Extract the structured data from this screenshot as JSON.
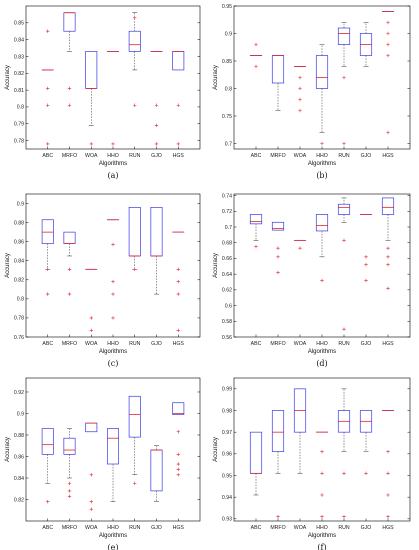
{
  "figure": {
    "xlabel": "Algorithms",
    "ylabel": "Accuracy"
  },
  "colors": {
    "box": "#3a3ae8",
    "median": "#e0262b",
    "outlier": "#e0262b",
    "whisker": "#333333"
  },
  "chart_data": [
    {
      "type": "box",
      "panel_label": "(a)",
      "categories": [
        "ABC",
        "MRFO",
        "WOA",
        "HHO",
        "RUN",
        "GJO",
        "HGS"
      ],
      "ylim": [
        0.775,
        0.86
      ],
      "yticks": [
        0.78,
        0.79,
        0.8,
        0.81,
        0.82,
        0.83,
        0.84,
        0.85
      ],
      "ytick_labels": [
        "0.78",
        "0.79",
        "0.8",
        "0.81",
        "0.82",
        "0.83",
        "0.84",
        "0.85"
      ],
      "boxes": [
        {
          "q1": 0.822,
          "median": 0.822,
          "q3": 0.822,
          "wlo": 0.822,
          "whi": 0.822,
          "outliers": [
            0.845,
            0.811,
            0.801,
            0.778
          ]
        },
        {
          "q1": 0.845,
          "median": 0.856,
          "q3": 0.856,
          "wlo": 0.833,
          "whi": 0.856,
          "outliers": [
            0.811,
            0.801
          ]
        },
        {
          "q1": 0.811,
          "median": 0.811,
          "q3": 0.833,
          "wlo": 0.789,
          "whi": 0.833,
          "outliers": [
            0.778
          ]
        },
        {
          "q1": 0.833,
          "median": 0.833,
          "q3": 0.833,
          "wlo": 0.833,
          "whi": 0.833,
          "outliers": [
            0.778
          ]
        },
        {
          "q1": 0.833,
          "median": 0.837,
          "q3": 0.845,
          "wlo": 0.822,
          "whi": 0.856,
          "outliers": [
            0.853,
            0.801
          ]
        },
        {
          "q1": 0.833,
          "median": 0.833,
          "q3": 0.833,
          "wlo": 0.833,
          "whi": 0.833,
          "outliers": [
            0.801,
            0.789,
            0.778
          ]
        },
        {
          "q1": 0.822,
          "median": 0.833,
          "q3": 0.833,
          "wlo": 0.822,
          "whi": 0.833,
          "outliers": [
            0.801,
            0.778
          ]
        }
      ]
    },
    {
      "type": "box",
      "panel_label": "(b)",
      "categories": [
        "ABC",
        "MRFO",
        "WOA",
        "HHO",
        "RUN",
        "GJO",
        "HGS"
      ],
      "ylim": [
        0.69,
        0.95
      ],
      "yticks": [
        0.7,
        0.75,
        0.8,
        0.85,
        0.9,
        0.95
      ],
      "ytick_labels": [
        "0.7",
        "0.75",
        "0.8",
        "0.85",
        "0.9",
        "0.95"
      ],
      "boxes": [
        {
          "q1": 0.86,
          "median": 0.86,
          "q3": 0.86,
          "wlo": 0.86,
          "whi": 0.86,
          "outliers": [
            0.88,
            0.84
          ]
        },
        {
          "q1": 0.81,
          "median": 0.86,
          "q3": 0.86,
          "wlo": 0.76,
          "whi": 0.86,
          "outliers": []
        },
        {
          "q1": 0.84,
          "median": 0.84,
          "q3": 0.84,
          "wlo": 0.84,
          "whi": 0.84,
          "outliers": [
            0.82,
            0.8,
            0.78,
            0.76
          ]
        },
        {
          "q1": 0.8,
          "median": 0.82,
          "q3": 0.86,
          "wlo": 0.72,
          "whi": 0.88,
          "outliers": [
            0.7
          ]
        },
        {
          "q1": 0.88,
          "median": 0.9,
          "q3": 0.91,
          "wlo": 0.84,
          "whi": 0.92,
          "outliers": [
            0.82,
            0.7
          ]
        },
        {
          "q1": 0.86,
          "median": 0.88,
          "q3": 0.9,
          "wlo": 0.84,
          "whi": 0.92,
          "outliers": []
        },
        {
          "q1": 0.94,
          "median": 0.94,
          "q3": 0.94,
          "wlo": 0.94,
          "whi": 0.94,
          "outliers": [
            0.92,
            0.9,
            0.88,
            0.86,
            0.72
          ]
        }
      ]
    },
    {
      "type": "box",
      "panel_label": "(c)",
      "categories": [
        "ABC",
        "MRFO",
        "WOA",
        "HHO",
        "RUN",
        "GJO",
        "HGS"
      ],
      "ylim": [
        0.76,
        0.91
      ],
      "yticks": [
        0.76,
        0.78,
        0.8,
        0.82,
        0.84,
        0.86,
        0.88,
        0.9
      ],
      "ytick_labels": [
        "0.76",
        "0.78",
        "0.8",
        "0.82",
        "0.84",
        "0.86",
        "0.88",
        "0.9"
      ],
      "boxes": [
        {
          "q1": 0.858,
          "median": 0.87,
          "q3": 0.883,
          "wlo": 0.831,
          "whi": 0.883,
          "outliers": [
            0.831,
            0.805
          ]
        },
        {
          "q1": 0.858,
          "median": 0.858,
          "q3": 0.87,
          "wlo": 0.845,
          "whi": 0.87,
          "outliers": [
            0.831,
            0.805
          ]
        },
        {
          "q1": 0.831,
          "median": 0.831,
          "q3": 0.831,
          "wlo": 0.831,
          "whi": 0.831,
          "outliers": [
            0.78,
            0.767
          ]
        },
        {
          "q1": 0.883,
          "median": 0.883,
          "q3": 0.883,
          "wlo": 0.883,
          "whi": 0.883,
          "outliers": [
            0.857,
            0.818,
            0.805,
            0.78
          ]
        },
        {
          "q1": 0.845,
          "median": 0.845,
          "q3": 0.896,
          "wlo": 0.831,
          "whi": 0.896,
          "outliers": [
            0.831
          ]
        },
        {
          "q1": 0.845,
          "median": 0.845,
          "q3": 0.896,
          "wlo": 0.805,
          "whi": 0.896,
          "outliers": []
        },
        {
          "q1": 0.87,
          "median": 0.87,
          "q3": 0.87,
          "wlo": 0.87,
          "whi": 0.87,
          "outliers": [
            0.831,
            0.818,
            0.805,
            0.767
          ]
        }
      ]
    },
    {
      "type": "box",
      "panel_label": "(d)",
      "categories": [
        "ABC",
        "MRFO",
        "WOA",
        "HHO",
        "RUN",
        "GJO",
        "HGS"
      ],
      "ylim": [
        0.56,
        0.742
      ],
      "yticks": [
        0.56,
        0.58,
        0.6,
        0.62,
        0.64,
        0.66,
        0.68,
        0.7,
        0.72,
        0.74
      ],
      "ytick_labels": [
        "0.56",
        "0.58",
        "0.6",
        "0.62",
        "0.64",
        "0.66",
        "0.68",
        "0.7",
        "0.72",
        "0.74"
      ],
      "boxes": [
        {
          "q1": 0.704,
          "median": 0.707,
          "q3": 0.716,
          "wlo": 0.683,
          "whi": 0.716,
          "outliers": [
            0.675
          ]
        },
        {
          "q1": 0.696,
          "median": 0.698,
          "q3": 0.706,
          "wlo": 0.696,
          "whi": 0.706,
          "outliers": [
            0.673,
            0.662,
            0.642
          ]
        },
        {
          "q1": 0.683,
          "median": 0.683,
          "q3": 0.683,
          "wlo": 0.683,
          "whi": 0.683,
          "outliers": [
            0.673
          ]
        },
        {
          "q1": 0.695,
          "median": 0.702,
          "q3": 0.716,
          "wlo": 0.662,
          "whi": 0.716,
          "outliers": [
            0.632
          ]
        },
        {
          "q1": 0.716,
          "median": 0.725,
          "q3": 0.729,
          "wlo": 0.706,
          "whi": 0.737,
          "outliers": [
            0.683,
            0.57
          ]
        },
        {
          "q1": 0.716,
          "median": 0.716,
          "q3": 0.716,
          "wlo": 0.716,
          "whi": 0.716,
          "outliers": [
            0.662,
            0.652,
            0.632
          ]
        },
        {
          "q1": 0.716,
          "median": 0.725,
          "q3": 0.737,
          "wlo": 0.683,
          "whi": 0.737,
          "outliers": [
            0.673,
            0.662,
            0.652,
            0.622
          ]
        }
      ]
    },
    {
      "type": "box",
      "panel_label": "(e)",
      "categories": [
        "ABC",
        "MRFO",
        "WOA",
        "HHO",
        "RUN",
        "GJO",
        "HGS"
      ],
      "ylim": [
        0.8,
        0.933
      ],
      "yticks": [
        0.82,
        0.84,
        0.86,
        0.88,
        0.9,
        0.92
      ],
      "ytick_labels": [
        "0.82",
        "0.84",
        "0.86",
        "0.88",
        "0.9",
        "0.92"
      ],
      "boxes": [
        {
          "q1": 0.862,
          "median": 0.871,
          "q3": 0.886,
          "wlo": 0.835,
          "whi": 0.886,
          "outliers": [
            0.818
          ]
        },
        {
          "q1": 0.862,
          "median": 0.866,
          "q3": 0.877,
          "wlo": 0.84,
          "whi": 0.886,
          "outliers": [
            0.835,
            0.828,
            0.823
          ]
        },
        {
          "q1": 0.883,
          "median": 0.891,
          "q3": 0.891,
          "wlo": 0.883,
          "whi": 0.891,
          "outliers": [
            0.843,
            0.818,
            0.811
          ]
        },
        {
          "q1": 0.853,
          "median": 0.877,
          "q3": 0.886,
          "wlo": 0.818,
          "whi": 0.886,
          "outliers": []
        },
        {
          "q1": 0.878,
          "median": 0.899,
          "q3": 0.916,
          "wlo": 0.843,
          "whi": 0.916,
          "outliers": [
            0.835
          ]
        },
        {
          "q1": 0.828,
          "median": 0.866,
          "q3": 0.866,
          "wlo": 0.818,
          "whi": 0.87,
          "outliers": []
        },
        {
          "q1": 0.899,
          "median": 0.9,
          "q3": 0.91,
          "wlo": 0.899,
          "whi": 0.91,
          "outliers": [
            0.883,
            0.862,
            0.853,
            0.848,
            0.843
          ]
        }
      ]
    },
    {
      "type": "box",
      "panel_label": "(f)",
      "categories": [
        "ABC",
        "MRFO",
        "WOA",
        "HHO",
        "RUN",
        "GJO",
        "HGS"
      ],
      "ylim": [
        0.929,
        0.995
      ],
      "yticks": [
        0.93,
        0.94,
        0.95,
        0.96,
        0.97,
        0.98,
        0.99
      ],
      "ytick_labels": [
        "0.93",
        "0.94",
        "0.95",
        "0.96",
        "0.97",
        "0.98",
        "0.99"
      ],
      "boxes": [
        {
          "q1": 0.951,
          "median": 0.951,
          "q3": 0.97,
          "wlo": 0.941,
          "whi": 0.97,
          "outliers": []
        },
        {
          "q1": 0.961,
          "median": 0.97,
          "q3": 0.98,
          "wlo": 0.951,
          "whi": 0.98,
          "outliers": [
            0.931
          ]
        },
        {
          "q1": 0.97,
          "median": 0.98,
          "q3": 0.99,
          "wlo": 0.951,
          "whi": 0.99,
          "outliers": []
        },
        {
          "q1": 0.97,
          "median": 0.97,
          "q3": 0.97,
          "wlo": 0.97,
          "whi": 0.97,
          "outliers": [
            0.961,
            0.951,
            0.941,
            0.931
          ]
        },
        {
          "q1": 0.97,
          "median": 0.975,
          "q3": 0.98,
          "wlo": 0.961,
          "whi": 0.99,
          "outliers": [
            0.951,
            0.931
          ]
        },
        {
          "q1": 0.97,
          "median": 0.975,
          "q3": 0.98,
          "wlo": 0.961,
          "whi": 0.98,
          "outliers": [
            0.951
          ]
        },
        {
          "q1": 0.98,
          "median": 0.98,
          "q3": 0.98,
          "wlo": 0.98,
          "whi": 0.98,
          "outliers": [
            0.961,
            0.951,
            0.941,
            0.931
          ]
        }
      ]
    }
  ]
}
